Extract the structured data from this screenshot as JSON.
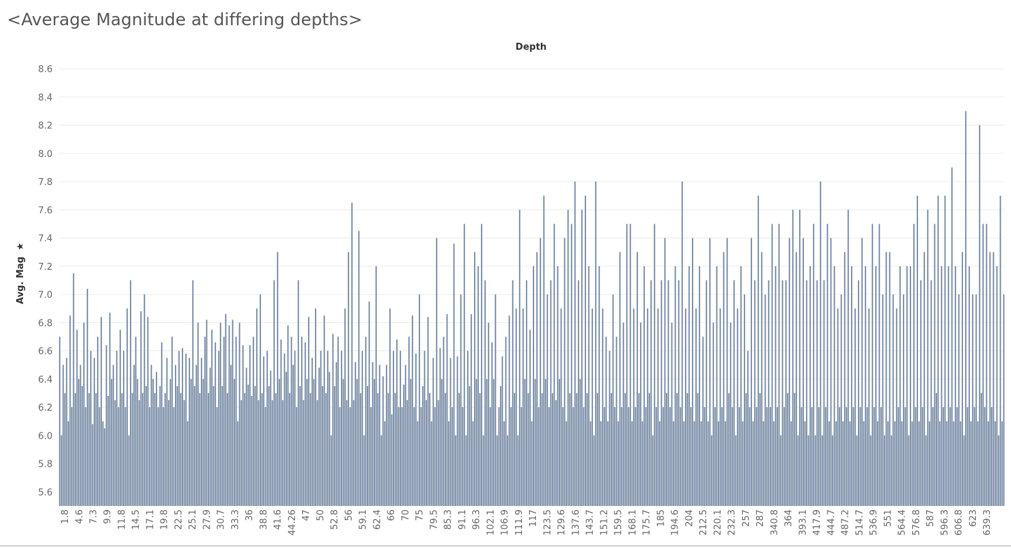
{
  "title": "<Average Magnitude at differing depths>",
  "chart_data": {
    "type": "bar",
    "title": "<Average Magnitude at differing depths>",
    "column_header": "Depth",
    "ylabel": "Avg. Mag",
    "ylim": [
      5.5,
      8.7
    ],
    "y_ticks": [
      "5.6",
      "5.8",
      "6.0",
      "6.2",
      "6.4",
      "6.6",
      "6.8",
      "7.0",
      "7.2",
      "7.4",
      "7.6",
      "7.8",
      "8.0",
      "8.2",
      "8.4",
      "8.6"
    ],
    "grid": true,
    "fill_color": "#d4d4d4",
    "bar_color": "#4e6f9b",
    "x_tick_labels": [
      "1.8",
      "4.6",
      "7.3",
      "9.9",
      "11.8",
      "14.5",
      "17.1",
      "19.8",
      "22.5",
      "25.1",
      "27.9",
      "30.7",
      "33.3",
      "36",
      "38.8",
      "41.6",
      "44.26",
      "47",
      "50",
      "52.8",
      "56",
      "59.1",
      "62.4",
      "66",
      "70",
      "75",
      "79.5",
      "85.3",
      "91.1",
      "96.3",
      "102.1",
      "106.9",
      "111.9",
      "117",
      "123.5",
      "129.6",
      "137.6",
      "143.7",
      "151.2",
      "159.5",
      "168.1",
      "175.7",
      "185",
      "194.6",
      "204",
      "212.5",
      "220.1",
      "232.3",
      "257",
      "287",
      "340.8",
      "364",
      "393.1",
      "417.9",
      "444.7",
      "487.2",
      "514.7",
      "536.9",
      "551",
      "564.4",
      "576.8",
      "587",
      "596.3",
      "606.8",
      "623",
      "639.3"
    ],
    "values": [
      6.7,
      6.0,
      6.5,
      6.3,
      6.55,
      6.1,
      6.85,
      6.2,
      7.15,
      6.3,
      6.75,
      6.4,
      6.5,
      6.35,
      6.8,
      6.2,
      7.04,
      6.3,
      6.6,
      6.08,
      6.55,
      6.3,
      6.7,
      6.2,
      6.84,
      6.1,
      6.05,
      6.64,
      6.28,
      6.87,
      6.4,
      6.5,
      6.25,
      6.6,
      6.2,
      6.75,
      6.3,
      6.6,
      6.2,
      6.9,
      6.0,
      7.1,
      6.3,
      6.5,
      6.7,
      6.4,
      6.25,
      6.88,
      6.3,
      7.0,
      6.35,
      6.84,
      6.2,
      6.5,
      6.4,
      6.3,
      6.45,
      6.2,
      6.35,
      6.66,
      6.2,
      6.3,
      6.55,
      6.25,
      6.4,
      6.7,
      6.2,
      6.5,
      6.35,
      6.6,
      6.3,
      6.62,
      6.25,
      6.58,
      6.1,
      6.55,
      6.4,
      7.1,
      6.35,
      6.5,
      6.8,
      6.3,
      6.55,
      6.4,
      6.7,
      6.82,
      6.3,
      6.48,
      6.75,
      6.35,
      6.66,
      6.2,
      6.6,
      6.8,
      6.35,
      6.7,
      6.86,
      6.3,
      6.78,
      6.5,
      6.82,
      6.4,
      6.7,
      6.1,
      6.8,
      6.25,
      6.64,
      6.3,
      6.48,
      6.36,
      6.64,
      6.28,
      6.7,
      6.35,
      6.9,
      6.25,
      7.0,
      6.3,
      6.56,
      6.2,
      6.6,
      6.35,
      6.46,
      6.25,
      7.1,
      6.3,
      7.3,
      6.4,
      6.68,
      6.25,
      6.58,
      6.45,
      6.78,
      6.3,
      6.7,
      6.5,
      6.6,
      6.2,
      7.1,
      6.35,
      6.7,
      6.25,
      6.66,
      6.4,
      6.84,
      6.3,
      6.55,
      6.4,
      6.9,
      6.25,
      6.48,
      6.6,
      6.35,
      6.85,
      6.3,
      6.6,
      6.45,
      6.0,
      6.72,
      6.35,
      6.52,
      6.7,
      6.2,
      6.6,
      6.4,
      6.9,
      6.25,
      7.3,
      6.2,
      7.65,
      6.25,
      6.52,
      6.4,
      7.45,
      6.3,
      6.6,
      6.0,
      6.7,
      6.35,
      6.95,
      6.2,
      6.52,
      6.4,
      7.2,
      6.3,
      6.5,
      6.0,
      6.42,
      6.1,
      6.5,
      6.3,
      6.9,
      6.15,
      6.6,
      6.3,
      6.68,
      6.2,
      6.6,
      6.2,
      6.36,
      6.5,
      6.25,
      6.7,
      6.4,
      6.85,
      6.2,
      6.58,
      6.1,
      7.0,
      6.2,
      6.35,
      6.6,
      6.25,
      6.84,
      6.3,
      6.1,
      6.55,
      6.2,
      7.4,
      6.25,
      6.62,
      6.4,
      6.7,
      6.3,
      6.86,
      6.1,
      6.55,
      6.2,
      7.36,
      6.0,
      6.56,
      6.3,
      7.0,
      6.2,
      7.5,
      6.0,
      6.6,
      6.35,
      6.86,
      6.1,
      7.3,
      6.4,
      7.2,
      6.3,
      7.5,
      6.0,
      7.1,
      6.4,
      6.8,
      6.2,
      6.66,
      6.4,
      7.0,
      6.0,
      6.2,
      6.35,
      6.56,
      6.1,
      6.7,
      6.0,
      6.85,
      6.2,
      7.1,
      6.3,
      6.9,
      6.0,
      7.6,
      6.2,
      6.9,
      6.4,
      7.1,
      6.3,
      6.75,
      6.1,
      7.2,
      6.4,
      7.3,
      6.2,
      7.4,
      6.3,
      7.7,
      6.4,
      7.0,
      6.2,
      7.1,
      6.3,
      7.5,
      6.25,
      7.2,
      6.4,
      6.9,
      6.2,
      7.4,
      6.1,
      7.6,
      6.3,
      7.5,
      6.2,
      7.8,
      6.3,
      7.1,
      6.4,
      7.6,
      6.2,
      7.7,
      6.3,
      7.2,
      6.1,
      6.9,
      6.0,
      7.8,
      6.3,
      7.2,
      6.1,
      6.9,
      6.2,
      6.7,
      6.1,
      6.6,
      6.3,
      7.0,
      6.2,
      6.7,
      6.1,
      7.3,
      6.2,
      6.8,
      6.3,
      7.5,
      6.2,
      7.5,
      6.1,
      6.9,
      6.2,
      7.3,
      6.3,
      6.8,
      6.1,
      7.2,
      6.2,
      6.9,
      6.3,
      7.1,
      6.0,
      7.5,
      6.2,
      6.9,
      6.1,
      7.1,
      6.2,
      7.4,
      6.3,
      7.1,
      6.2,
      6.8,
      6.1,
      7.2,
      6.3,
      7.1,
      6.2,
      7.8,
      6.1,
      6.9,
      6.3,
      7.2,
      6.2,
      7.4,
      6.1,
      6.9,
      6.3,
      7.2,
      6.1,
      6.7,
      6.2,
      7.1,
      6.1,
      7.4,
      6.0,
      6.8,
      6.2,
      7.2,
      6.1,
      6.9,
      6.2,
      7.3,
      6.1,
      7.4,
      6.3,
      6.8,
      6.2,
      7.1,
      6.0,
      6.9,
      6.2,
      7.2,
      6.1,
      7.0,
      6.3,
      6.6,
      6.2,
      7.4,
      6.1,
      7.1,
      6.2,
      7.7,
      6.3,
      7.3,
      6.1,
      7.0,
      6.2,
      7.1,
      6.2,
      7.5,
      6.1,
      7.2,
      6.2,
      7.5,
      6.0,
      7.1,
      6.2,
      7.1,
      6.3,
      7.4,
      6.1,
      7.6,
      6.3,
      7.3,
      6.0,
      7.6,
      6.2,
      7.4,
      6.1,
      7.1,
      6.0,
      7.2,
      6.2,
      7.5,
      6.0,
      7.1,
      6.2,
      7.8,
      6.0,
      7.1,
      6.2,
      7.5,
      6.1,
      7.4,
      6.0,
      7.2,
      6.1,
      6.9,
      6.2,
      7.0,
      6.1,
      7.3,
      6.2,
      7.6,
      6.1,
      7.2,
      6.2,
      6.9,
      6.0,
      7.1,
      6.2,
      7.4,
      6.1,
      7.2,
      6.2,
      6.9,
      6.0,
      7.5,
      6.2,
      7.2,
      6.1,
      7.5,
      6.2,
      7.0,
      6.0,
      7.3,
      6.1,
      7.3,
      6.0,
      7.0,
      6.1,
      6.9,
      6.2,
      7.2,
      6.1,
      7.0,
      6.2,
      7.2,
      6.0,
      7.2,
      6.1,
      7.5,
      6.2,
      7.7,
      6.1,
      7.1,
      6.2,
      7.3,
      6.0,
      7.6,
      6.1,
      7.1,
      6.2,
      7.5,
      6.3,
      7.7,
      6.1,
      7.2,
      6.2,
      7.7,
      6.1,
      7.2,
      6.2,
      7.9,
      6.1,
      7.2,
      6.2,
      7.0,
      6.1,
      7.3,
      6.0,
      8.3,
      6.2,
      7.2,
      6.1,
      7.0,
      6.2,
      7.0,
      6.1,
      8.2,
      6.3,
      7.5,
      6.2,
      7.5,
      6.1,
      7.3,
      6.2,
      7.3,
      6.1,
      7.2,
      6.0,
      7.7,
      6.1,
      7.0
    ],
    "bar_count_note": ""
  }
}
